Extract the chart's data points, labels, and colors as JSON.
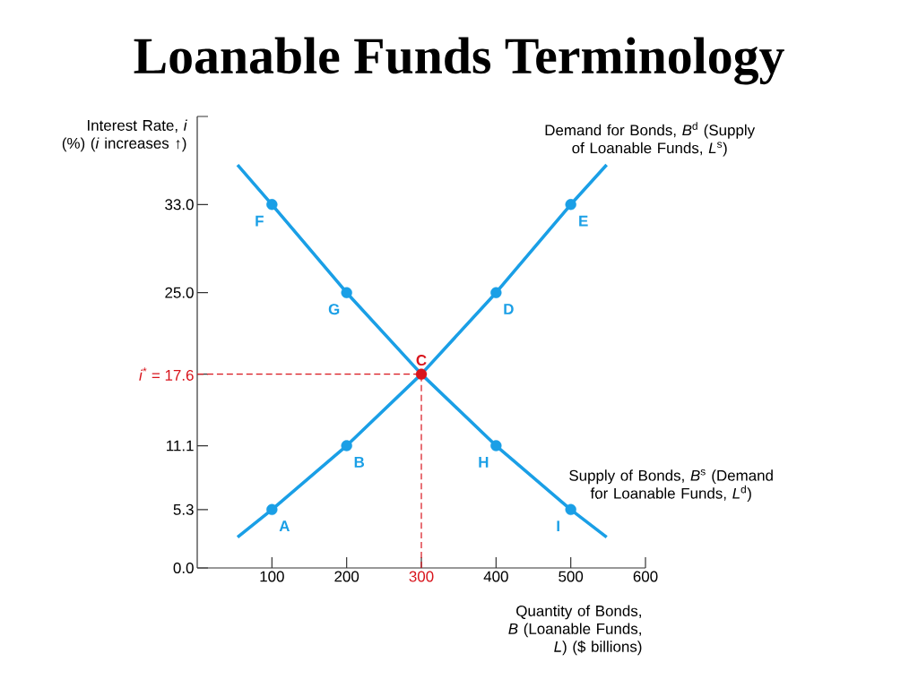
{
  "chart_data": {
    "type": "line",
    "title": "Loanable Funds Terminology",
    "xlabel": "Quantity of Bonds, *B* (Loanable Funds, *L*) ($ billions)",
    "ylabel": "Interest Rate, *i* (%) (*i* increases ↑)",
    "xlim": [
      0,
      600
    ],
    "ylim": [
      0,
      41
    ],
    "xticks": [
      100,
      200,
      {
        "value": 300,
        "label": "300"
      },
      400,
      500,
      600
    ],
    "yticks": [
      {
        "value": 0,
        "label": "0.0"
      },
      5.3,
      11.1,
      {
        "value": 17.6,
        "label": "*i*$^{*}$ = 17.6"
      },
      {
        "value": 25,
        "label": "25.0"
      },
      {
        "value": 33,
        "label": "33.0"
      },
      {
        "value": 41,
        "label": null
      }
    ],
    "series": [
      {
        "name": "Demand for Bonds, *B*$^{d}$ (Supply of Loanable Funds, *L*$^{s}$)",
        "type": "line",
        "color": "#1a9fe6",
        "marker": "none",
        "x": [
          54,
          100,
          200,
          300,
          400,
          500,
          548
        ],
        "values": [
          2.8,
          5.3,
          11.1,
          17.6,
          25,
          33,
          36.6
        ]
      },
      {
        "name": "Supply of Bonds, *B*$^{s}$ (Demand for Loanable Funds, *L*$^{d}$)",
        "type": "line",
        "color": "#1a9fe6",
        "marker": "none",
        "x": [
          54,
          100,
          200,
          300,
          400,
          500,
          548
        ],
        "values": [
          36.6,
          33,
          25,
          17.6,
          11.1,
          5.3,
          2.8
        ]
      },
      {
        "type": "scatter",
        "color": "#1a9fe6",
        "marker": "circle",
        "x": [
          100,
          200,
          400,
          500,
          100,
          200,
          400,
          500
        ],
        "values": [
          5.3,
          11.1,
          25,
          33,
          33,
          25,
          11.1,
          5.3
        ]
      },
      {
        "type": "scatter",
        "color": "#d8141c",
        "marker": "circle",
        "x": [
          300
        ],
        "values": [
          17.6
        ]
      }
    ],
    "ref_lines": [
      {
        "axis": "y",
        "value": 17.6,
        "color": "#d8141c",
        "line_style": "dashed"
      },
      {
        "axis": "x",
        "value": 300,
        "color": "#d8141c",
        "line_style": "dashed"
      }
    ],
    "annotations": [
      {
        "text": "A",
        "x": 100,
        "y": 5.3
      },
      {
        "text": "B",
        "x": 200,
        "y": 11.1
      },
      {
        "text": "C",
        "x": 300,
        "y": 17.6
      },
      {
        "text": "D",
        "x": 400,
        "y": 25
      },
      {
        "text": "E",
        "x": 500,
        "y": 33
      },
      {
        "text": "F",
        "x": 100,
        "y": 33
      },
      {
        "text": "G",
        "x": 200,
        "y": 25
      },
      {
        "text": "H",
        "x": 400,
        "y": 11.1
      },
      {
        "text": "I",
        "x": 500,
        "y": 5.3
      }
    ],
    "grid": false
  }
}
